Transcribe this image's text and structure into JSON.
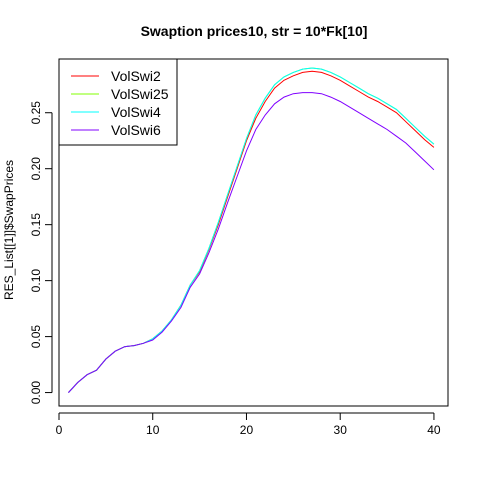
{
  "chart_data": {
    "type": "line",
    "title": "Swaption prices10, str = 10*Fk[10]",
    "xlabel": "",
    "ylabel": "RES_List[[1]]$SwapPrices",
    "xlim": [
      0,
      41.5
    ],
    "ylim": [
      -0.012,
      0.298
    ],
    "x_ticks": [
      0,
      10,
      20,
      30,
      40
    ],
    "x_tick_labels": [
      "0",
      "10",
      "20",
      "30",
      "40"
    ],
    "y_ticks": [
      0.0,
      0.05,
      0.1,
      0.15,
      0.2,
      0.25
    ],
    "y_tick_labels": [
      "0.00",
      "0.05",
      "0.10",
      "0.15",
      "0.20",
      "0.25"
    ],
    "grid": false,
    "legend_position": "top-left",
    "x": [
      1,
      2,
      3,
      4,
      5,
      6,
      7,
      8,
      9,
      10,
      11,
      12,
      13,
      14,
      15,
      16,
      17,
      18,
      19,
      20,
      21,
      22,
      23,
      24,
      25,
      26,
      27,
      28,
      29,
      30,
      31,
      32,
      33,
      34,
      35,
      36,
      37,
      38,
      39,
      40
    ],
    "series": [
      {
        "name": "VolSwi2",
        "color": "#ff0000",
        "values": [
          0.0,
          0.009,
          0.016,
          0.02,
          0.03,
          0.037,
          0.041,
          0.042,
          0.044,
          0.048,
          0.055,
          0.065,
          0.078,
          0.096,
          0.108,
          0.128,
          0.15,
          0.175,
          0.2,
          0.225,
          0.245,
          0.26,
          0.272,
          0.279,
          0.283,
          0.286,
          0.287,
          0.286,
          0.283,
          0.279,
          0.274,
          0.269,
          0.264,
          0.26,
          0.255,
          0.25,
          0.242,
          0.234,
          0.226,
          0.219
        ]
      },
      {
        "name": "VolSwi25",
        "color": "#80ff00",
        "values": [
          0.0,
          0.009,
          0.016,
          0.02,
          0.03,
          0.037,
          0.041,
          0.042,
          0.044,
          0.048,
          0.055,
          0.065,
          0.078,
          0.096,
          0.109,
          0.129,
          0.152,
          0.177,
          0.202,
          0.227,
          0.248,
          0.263,
          0.275,
          0.282,
          0.286,
          0.289,
          0.29,
          0.289,
          0.286,
          0.282,
          0.277,
          0.272,
          0.267,
          0.263,
          0.258,
          0.253,
          0.245,
          0.237,
          0.229,
          0.222
        ]
      },
      {
        "name": "VolSwi4",
        "color": "#00ffff",
        "values": [
          0.0,
          0.009,
          0.016,
          0.02,
          0.03,
          0.037,
          0.041,
          0.042,
          0.044,
          0.048,
          0.055,
          0.065,
          0.078,
          0.096,
          0.109,
          0.129,
          0.152,
          0.177,
          0.202,
          0.227,
          0.248,
          0.263,
          0.275,
          0.282,
          0.286,
          0.289,
          0.29,
          0.289,
          0.286,
          0.282,
          0.277,
          0.272,
          0.267,
          0.263,
          0.258,
          0.253,
          0.245,
          0.237,
          0.229,
          0.222
        ]
      },
      {
        "name": "VolSwi6",
        "color": "#8000ff",
        "values": [
          0.0,
          0.009,
          0.016,
          0.02,
          0.03,
          0.037,
          0.041,
          0.042,
          0.044,
          0.047,
          0.054,
          0.064,
          0.076,
          0.094,
          0.106,
          0.125,
          0.146,
          0.17,
          0.193,
          0.216,
          0.235,
          0.248,
          0.258,
          0.264,
          0.267,
          0.268,
          0.268,
          0.267,
          0.264,
          0.26,
          0.255,
          0.25,
          0.245,
          0.24,
          0.235,
          0.229,
          0.223,
          0.215,
          0.207,
          0.199
        ]
      }
    ]
  }
}
